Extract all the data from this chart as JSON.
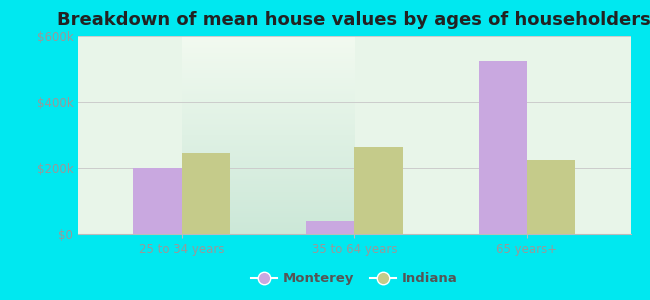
{
  "title": "Breakdown of mean house values by ages of householders",
  "categories": [
    "25 to 34 years",
    "35 to 64 years",
    "65 years+"
  ],
  "monterey_values": [
    200000,
    40000,
    525000
  ],
  "indiana_values": [
    245000,
    265000,
    225000
  ],
  "monterey_color": "#c9a8e0",
  "indiana_color": "#c5cb8a",
  "background_outer": "#00e8f0",
  "ylim": [
    0,
    600000
  ],
  "yticks": [
    0,
    200000,
    400000,
    600000
  ],
  "ytick_labels": [
    "$0",
    "$200k",
    "$400k",
    "$600k"
  ],
  "legend_labels": [
    "Monterey",
    "Indiana"
  ],
  "bar_width": 0.28,
  "title_fontsize": 13,
  "tick_fontsize": 8.5,
  "legend_fontsize": 9.5
}
